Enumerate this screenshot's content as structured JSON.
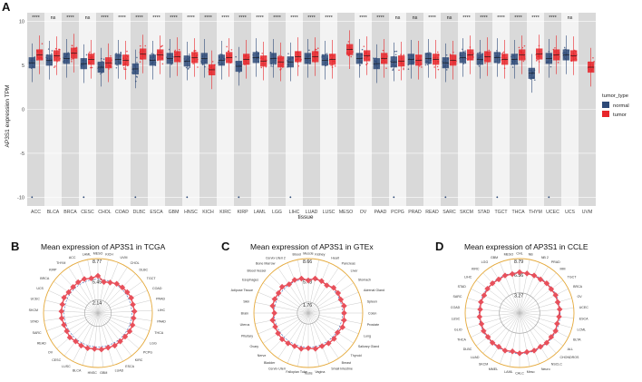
{
  "panelA": {
    "letter": "A",
    "ylabel": "AP3S1 expression TPM",
    "xlabel": "tissue",
    "yticks": [
      10,
      5,
      0,
      -5,
      -10
    ],
    "legend": {
      "title": "tumor_type",
      "items": [
        {
          "label": "normal",
          "color": "#2e4a78"
        },
        {
          "label": "tumor",
          "color": "#e8262b"
        }
      ]
    }
  },
  "chart_data": [
    {
      "type": "box",
      "panel": "A",
      "ylabel": "AP3S1 expression TPM",
      "xlabel": "tissue",
      "ylim": [
        -11,
        11
      ],
      "categories": [
        "ACC",
        "BLCA",
        "BRCA",
        "CESC",
        "CHOL",
        "COAD",
        "DLBC",
        "ESCA",
        "GBM",
        "HNSC",
        "KICH",
        "KIRC",
        "KIRP",
        "LAML",
        "LGG",
        "LIHC",
        "LUAD",
        "LUSC",
        "MESO",
        "OV",
        "PAAD",
        "PCPG",
        "PRAD",
        "READ",
        "SARC",
        "SKCM",
        "STAD",
        "TGCT",
        "THCA",
        "THYM",
        "UCEC",
        "UCS",
        "UVM"
      ],
      "significance": [
        "****",
        "ns",
        "****",
        "ns",
        "****",
        "****",
        "****",
        "****",
        "****",
        "****",
        "****",
        "****",
        "****",
        "****",
        "****",
        "****",
        "****",
        "****",
        "",
        "****",
        "****",
        "ns",
        "ns",
        "****",
        "ns",
        "****",
        "****",
        "****",
        "****",
        "****",
        "****",
        "ns",
        ""
      ],
      "series": [
        {
          "name": "normal",
          "medians": [
            5.3,
            5.6,
            5.8,
            5.2,
            4.8,
            5.7,
            4.6,
            5.6,
            5.8,
            5.5,
            5.8,
            5.6,
            4.9,
            5.9,
            5.8,
            5.4,
            5.8,
            5.6,
            null,
            5.8,
            5.2,
            5.4,
            5.7,
            5.8,
            5.3,
            5.9,
            5.7,
            5.9,
            5.7,
            4.1,
            5.8,
            6.2,
            null
          ]
        },
        {
          "name": "tumor",
          "medians": [
            6.2,
            6.1,
            6.4,
            5.7,
            5.3,
            5.6,
            6.3,
            6.2,
            6.0,
            5.9,
            4.5,
            5.9,
            5.7,
            5.5,
            5.4,
            6.0,
            6.0,
            5.7,
            6.8,
            6.1,
            5.8,
            5.5,
            5.6,
            5.7,
            5.6,
            6.2,
            6.0,
            5.7,
            6.2,
            6.3,
            6.2,
            6.1,
            4.8
          ]
        }
      ]
    },
    {
      "type": "radar",
      "panel": "B",
      "title": "Mean expression of AP3S1 in TCGA",
      "ring_labels": [
        2.14,
        5.45,
        8.77
      ],
      "categories": [
        "MESO",
        "KICH",
        "UVM",
        "CHOL",
        "DLBC",
        "TGCT",
        "COAD",
        "PRAD",
        "LIHC",
        "PAAD",
        "THCA",
        "LGG",
        "PCPG",
        "KIRC",
        "ESCA",
        "LUAD",
        "GBM",
        "HNSC",
        "BLCA",
        "LUSC",
        "CESC",
        "OV",
        "READ",
        "SARC",
        "STAD",
        "SKCM",
        "UCEC",
        "UCS",
        "BRCA",
        "KIRP",
        "THYM",
        "ACC",
        "LAML"
      ],
      "values": [
        6.0,
        5.1,
        5.3,
        5.6,
        5.7,
        5.8,
        5.9,
        5.8,
        5.9,
        5.8,
        5.9,
        5.9,
        5.8,
        5.8,
        5.9,
        5.8,
        5.9,
        5.8,
        5.9,
        5.9,
        5.8,
        6.0,
        5.8,
        5.8,
        5.9,
        5.9,
        5.9,
        6.0,
        5.8,
        5.8,
        5.9,
        5.9,
        5.7
      ]
    },
    {
      "type": "radar",
      "panel": "C",
      "title": "Mean expression of AP3S1 in GTEx",
      "ring_labels": [
        1.76,
        5.43,
        8.66
      ],
      "categories": [
        "Muscle",
        "Kidney",
        "Heart",
        "Pancreas",
        "Liver",
        "Stomach",
        "Adrenal Gland",
        "Spleen",
        "Colon",
        "Prostate",
        "Lung",
        "Salivary Gland",
        "Thyroid",
        "Breast",
        "Small Intestine",
        "Vagina",
        "Testis",
        "Fallopian Tube",
        "Cervix Uteri",
        "Bladder",
        "Nerve",
        "Ovary",
        "Pituitary",
        "Uterus",
        "Brain",
        "Skin",
        "Adipose Tissue",
        "Esophagus",
        "Blood Vessel",
        "Bone Marrow",
        "Cervix Uteri 2",
        "Blood"
      ],
      "values": [
        5.2,
        5.6,
        5.5,
        5.3,
        5.7,
        5.7,
        5.6,
        5.8,
        5.7,
        5.8,
        5.9,
        5.6,
        5.8,
        5.8,
        5.7,
        5.8,
        5.6,
        5.8,
        5.7,
        5.8,
        5.9,
        5.8,
        5.7,
        5.8,
        5.4,
        5.8,
        5.8,
        5.7,
        5.9,
        5.5,
        5.7,
        5.6
      ]
    },
    {
      "type": "radar",
      "panel": "D",
      "title": "Mean expression of AP3S1 in CCLE",
      "ring_labels": [
        3.27,
        6.56,
        8.79
      ],
      "categories": [
        "CHL",
        "NB",
        "NB 2",
        "PRAD",
        "MM",
        "TGCT",
        "BRCA",
        "OV",
        "UCEC",
        "ESCA",
        "LCML",
        "BLTA",
        "ALL",
        "CHONDROS",
        "NSCLC",
        "Neuro",
        "Meso",
        "CALC",
        "LAML",
        "MMEL",
        "SKCM",
        "LUAD",
        "DLBC",
        "THCA",
        "GLIO",
        "LUSC",
        "COAD",
        "SARC",
        "STAD",
        "LIHC",
        "KIRC",
        "LGG",
        "GBM",
        "MESO"
      ],
      "values": [
        6.6,
        6.5,
        6.5,
        6.4,
        6.5,
        6.4,
        6.5,
        6.4,
        6.5,
        6.4,
        6.3,
        6.5,
        6.4,
        6.5,
        6.4,
        6.5,
        6.4,
        6.5,
        6.3,
        6.5,
        6.4,
        6.5,
        6.4,
        6.5,
        6.4,
        6.5,
        6.4,
        6.5,
        6.4,
        6.5,
        6.5,
        6.4,
        6.5,
        6.4
      ]
    }
  ],
  "radarLetters": [
    "B",
    "C",
    "D"
  ],
  "colors": {
    "normal": "#2e4a78",
    "tumor": "#e8262b",
    "shade": "#d9d9d9",
    "radar_line": "#e8505b",
    "radar_point": "#e8505b",
    "ring_outer": "#e5a93a",
    "inner_ring": "#3b5fb0"
  }
}
